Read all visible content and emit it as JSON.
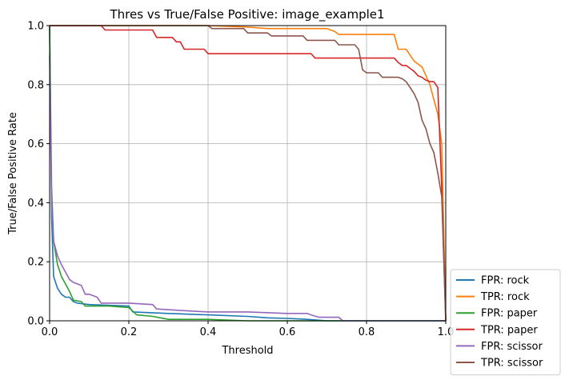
{
  "chart_data": {
    "type": "line",
    "title": "Thres vs True/False Positive: image_example1",
    "xlabel": "Threshold",
    "ylabel": "True/False Positive Rate",
    "xlim": [
      0,
      1
    ],
    "ylim": [
      0,
      1
    ],
    "xticks": [
      "0.0",
      "0.2",
      "0.4",
      "0.6",
      "0.8",
      "1.0"
    ],
    "yticks": [
      "0.0",
      "0.2",
      "0.4",
      "0.6",
      "0.8",
      "1.0"
    ],
    "grid": true,
    "legend_position": "outside lower-right",
    "series": [
      {
        "name": "FPR: rock",
        "color": "#1f77b4",
        "x": [
          0.0,
          0.005,
          0.01,
          0.02,
          0.03,
          0.04,
          0.05,
          0.06,
          0.07,
          0.1,
          0.2,
          0.21,
          0.3,
          0.4,
          0.5,
          0.55,
          0.6,
          0.65,
          0.68,
          0.7,
          1.0
        ],
        "y": [
          1.0,
          0.35,
          0.15,
          0.11,
          0.09,
          0.08,
          0.08,
          0.065,
          0.06,
          0.055,
          0.05,
          0.03,
          0.025,
          0.02,
          0.015,
          0.01,
          0.008,
          0.005,
          0.002,
          0.0,
          0.0
        ]
      },
      {
        "name": "TPR: rock",
        "color": "#ff7f0e",
        "x": [
          0.0,
          0.2,
          0.4,
          0.5,
          0.55,
          0.6,
          0.7,
          0.72,
          0.73,
          0.8,
          0.87,
          0.88,
          0.9,
          0.92,
          0.94,
          0.95,
          0.96,
          0.97,
          0.98,
          0.99,
          1.0
        ],
        "y": [
          1.0,
          1.0,
          1.0,
          0.995,
          0.99,
          0.99,
          0.99,
          0.98,
          0.97,
          0.97,
          0.97,
          0.92,
          0.92,
          0.88,
          0.86,
          0.83,
          0.8,
          0.75,
          0.7,
          0.6,
          0.0
        ]
      },
      {
        "name": "FPR: paper",
        "color": "#2ca02c",
        "x": [
          0.0,
          0.005,
          0.01,
          0.02,
          0.03,
          0.05,
          0.06,
          0.08,
          0.09,
          0.15,
          0.2,
          0.22,
          0.26,
          0.28,
          0.3,
          0.4,
          0.5,
          0.6,
          0.7,
          1.0
        ],
        "y": [
          1.0,
          0.45,
          0.27,
          0.19,
          0.15,
          0.1,
          0.07,
          0.065,
          0.05,
          0.05,
          0.045,
          0.02,
          0.015,
          0.01,
          0.005,
          0.005,
          0.0,
          0.0,
          0.0,
          0.0
        ]
      },
      {
        "name": "TPR: paper",
        "color": "#d62728",
        "x": [
          0.0,
          0.13,
          0.14,
          0.26,
          0.27,
          0.31,
          0.32,
          0.33,
          0.34,
          0.39,
          0.4,
          0.66,
          0.67,
          0.78,
          0.87,
          0.88,
          0.89,
          0.9,
          0.91,
          0.92,
          0.93,
          0.94,
          0.95,
          0.96,
          0.97,
          0.98,
          0.99,
          1.0
        ],
        "y": [
          1.0,
          1.0,
          0.985,
          0.985,
          0.96,
          0.96,
          0.945,
          0.945,
          0.92,
          0.92,
          0.905,
          0.905,
          0.89,
          0.89,
          0.89,
          0.875,
          0.865,
          0.865,
          0.855,
          0.845,
          0.83,
          0.825,
          0.815,
          0.81,
          0.81,
          0.79,
          0.45,
          0.0
        ]
      },
      {
        "name": "FPR: scissor",
        "color": "#9467bd",
        "x": [
          0.0,
          0.005,
          0.01,
          0.02,
          0.03,
          0.05,
          0.06,
          0.07,
          0.08,
          0.09,
          0.1,
          0.12,
          0.13,
          0.2,
          0.26,
          0.27,
          0.33,
          0.4,
          0.5,
          0.6,
          0.65,
          0.66,
          0.68,
          0.73,
          0.74,
          1.0
        ],
        "y": [
          0.9,
          0.4,
          0.27,
          0.22,
          0.19,
          0.14,
          0.13,
          0.125,
          0.12,
          0.09,
          0.09,
          0.08,
          0.06,
          0.06,
          0.055,
          0.04,
          0.035,
          0.03,
          0.03,
          0.025,
          0.025,
          0.02,
          0.012,
          0.012,
          0.0,
          0.0
        ]
      },
      {
        "name": "TPR: scissor",
        "color": "#8c564b",
        "x": [
          0.0,
          0.4,
          0.41,
          0.49,
          0.5,
          0.55,
          0.56,
          0.64,
          0.65,
          0.72,
          0.73,
          0.77,
          0.78,
          0.79,
          0.8,
          0.83,
          0.84,
          0.88,
          0.89,
          0.9,
          0.91,
          0.92,
          0.93,
          0.94,
          0.95,
          0.96,
          0.97,
          0.98,
          0.99,
          1.0
        ],
        "y": [
          1.0,
          1.0,
          0.99,
          0.99,
          0.975,
          0.975,
          0.965,
          0.965,
          0.95,
          0.95,
          0.935,
          0.935,
          0.92,
          0.85,
          0.84,
          0.84,
          0.825,
          0.825,
          0.82,
          0.81,
          0.79,
          0.77,
          0.74,
          0.68,
          0.65,
          0.6,
          0.57,
          0.5,
          0.42,
          0.0
        ]
      }
    ]
  }
}
